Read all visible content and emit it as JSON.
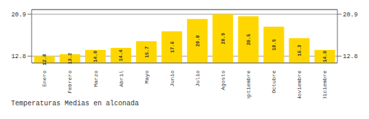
{
  "chart_data": {
    "type": "bar",
    "title": "Temperaturas Medias en alconada",
    "categories": [
      "Enero",
      "Febrero",
      "Marzo",
      "Abril",
      "Mayo",
      "Junio",
      "Julio",
      "Agosto",
      "Septiembre",
      "Octubre",
      "Noviembre",
      "Diciembre"
    ],
    "values": [
      12.8,
      13.2,
      14.0,
      14.4,
      15.7,
      17.6,
      20.0,
      20.9,
      20.5,
      18.5,
      16.3,
      14.0
    ],
    "value_labels": [
      "12.8",
      "13.2",
      "14.0",
      "14.4",
      "15.7",
      "17.6",
      "20.0",
      "20.9",
      "20.5",
      "18.5",
      "16.3",
      "14.0"
    ],
    "color": "#FFD700",
    "ylim": [
      11.5,
      21.8
    ],
    "yticks": [
      12.8,
      20.9
    ],
    "grid": true,
    "data_labels": true
  }
}
